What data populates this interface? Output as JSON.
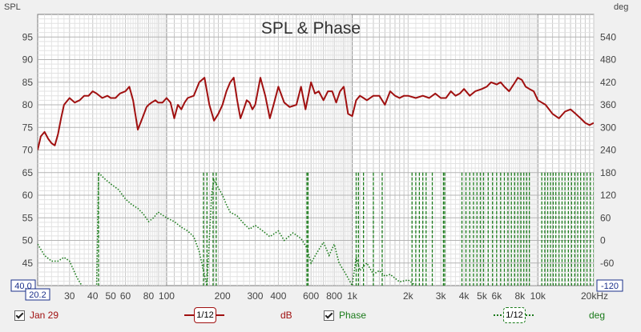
{
  "chart_data": {
    "type": "line",
    "title": "SPL & Phase",
    "left_axis_label": "SPL",
    "right_axis_label": "deg",
    "x_scale": "log",
    "xlim": [
      20.2,
      20000
    ],
    "ylim": [
      40,
      100
    ],
    "y2lim": [
      -120,
      600
    ],
    "x_ticks": [
      {
        "value": 30,
        "label": "30"
      },
      {
        "value": 40,
        "label": "40"
      },
      {
        "value": 50,
        "label": "50"
      },
      {
        "value": 60,
        "label": "60"
      },
      {
        "value": 80,
        "label": "80"
      },
      {
        "value": 100,
        "label": "100"
      },
      {
        "value": 200,
        "label": "200"
      },
      {
        "value": 300,
        "label": "300"
      },
      {
        "value": 400,
        "label": "400"
      },
      {
        "value": 600,
        "label": "600"
      },
      {
        "value": 800,
        "label": "800"
      },
      {
        "value": 1000,
        "label": "1k"
      },
      {
        "value": 2000,
        "label": "2k"
      },
      {
        "value": 3000,
        "label": "3k"
      },
      {
        "value": 4000,
        "label": "4k"
      },
      {
        "value": 5000,
        "label": "5k"
      },
      {
        "value": 6000,
        "label": "6k"
      },
      {
        "value": 8000,
        "label": "8k"
      },
      {
        "value": 10000,
        "label": "10k"
      },
      {
        "value": 20000,
        "label": "20kHz"
      }
    ],
    "x_start_label": "20.2",
    "y_ticks": [
      45,
      50,
      55,
      60,
      65,
      70,
      75,
      80,
      85,
      90,
      95
    ],
    "y_bottom_label": "40.0",
    "y2_ticks": [
      -60,
      0,
      60,
      120,
      180,
      240,
      300,
      360,
      420,
      480,
      540
    ],
    "y2_bottom_label": "-120",
    "grid": true,
    "series": [
      {
        "name": "Jan 29",
        "axis": "left",
        "color": "#a01010",
        "unit": "dB",
        "smoothing": "1/12",
        "x": [
          20.2,
          21,
          22,
          23,
          24,
          25,
          26,
          27,
          28,
          30,
          32,
          34,
          36,
          38,
          40,
          42,
          45,
          48,
          50,
          53,
          56,
          60,
          63,
          66,
          70,
          74,
          78,
          80,
          83,
          87,
          90,
          95,
          100,
          105,
          110,
          115,
          120,
          125,
          130,
          140,
          150,
          160,
          170,
          180,
          190,
          200,
          210,
          220,
          230,
          240,
          250,
          260,
          270,
          280,
          290,
          300,
          320,
          340,
          360,
          380,
          400,
          430,
          460,
          500,
          530,
          560,
          600,
          630,
          660,
          700,
          740,
          780,
          820,
          860,
          900,
          950,
          1000,
          1050,
          1100,
          1150,
          1200,
          1300,
          1400,
          1500,
          1600,
          1700,
          1800,
          1900,
          2000,
          2200,
          2400,
          2600,
          2800,
          3000,
          3200,
          3400,
          3600,
          3800,
          4000,
          4300,
          4600,
          5000,
          5300,
          5600,
          6000,
          6300,
          6600,
          7000,
          7400,
          7800,
          8200,
          8600,
          9000,
          9500,
          10000,
          11000,
          12000,
          13000,
          14000,
          15000,
          16000,
          17000,
          18000,
          19000,
          20000
        ],
        "y": [
          70,
          73,
          74,
          72.5,
          71.5,
          71,
          73.5,
          77,
          80,
          81.5,
          80.5,
          81,
          82,
          82,
          83,
          82.5,
          81.5,
          82,
          81.5,
          81.5,
          82.5,
          83,
          84,
          81,
          74.5,
          77,
          79.5,
          80,
          80.5,
          81,
          80.5,
          80.5,
          81.5,
          80.5,
          77,
          80,
          79,
          80.5,
          81.5,
          82,
          85,
          86,
          80,
          76.5,
          78,
          80,
          83,
          85,
          86,
          81,
          77,
          79,
          81,
          80.5,
          79,
          80,
          86,
          82,
          77,
          80.5,
          84,
          80.5,
          79.5,
          80,
          84,
          79,
          85,
          82.5,
          83,
          81,
          83,
          83,
          80.5,
          83,
          84,
          78,
          77.5,
          81,
          82,
          81.5,
          81,
          82,
          82,
          80,
          83,
          82,
          81.5,
          82,
          82,
          81.5,
          82,
          81.5,
          82.5,
          81.5,
          81.5,
          83,
          82,
          82.5,
          83.5,
          82,
          83,
          83.5,
          84,
          85,
          84.5,
          85,
          84,
          83,
          84.5,
          86,
          85.5,
          84,
          83.5,
          83,
          81,
          80,
          78,
          77,
          78.5,
          79,
          78,
          77,
          76,
          75.5,
          76
        ]
      },
      {
        "name": "Phase",
        "axis": "right",
        "color": "#1a7a1a",
        "unit": "deg",
        "smoothing": "1/12",
        "dotted": true,
        "x": [
          20.2,
          22,
          24,
          26,
          28,
          30,
          33,
          36,
          39,
          42,
          43,
          46,
          50,
          55,
          60,
          65,
          70,
          75,
          80,
          85,
          90,
          100,
          110,
          120,
          130,
          140,
          150,
          158,
          165,
          175,
          180,
          190,
          200,
          210,
          220,
          240,
          260,
          280,
          300,
          330,
          360,
          400,
          430,
          480,
          530,
          570,
          600,
          650,
          700,
          750,
          800,
          850,
          900,
          950,
          1000,
          1050,
          1100,
          1200,
          1300,
          1400,
          1500,
          1600,
          1800,
          2000,
          2200,
          2400
        ],
        "y": [
          -10,
          -40,
          -55,
          -55,
          -45,
          -55,
          -100,
          -130,
          -150,
          -120,
          180,
          165,
          150,
          135,
          110,
          95,
          85,
          70,
          50,
          60,
          75,
          60,
          50,
          35,
          25,
          10,
          -30,
          -80,
          -120,
          125,
          160,
          140,
          120,
          95,
          75,
          65,
          45,
          30,
          40,
          25,
          10,
          25,
          0,
          20,
          5,
          -20,
          -60,
          -30,
          -5,
          -40,
          -10,
          -60,
          -80,
          -100,
          -120,
          -45,
          -80,
          -60,
          -90,
          -80,
          -95,
          -90,
          -110,
          -105,
          -120,
          -125
        ]
      }
    ],
    "phase_wrap_x": [
      43,
      158,
      165,
      178,
      185,
      570,
      578,
      1050,
      1080,
      1150,
      1300,
      1450,
      2100,
      2200,
      2300,
      2400,
      2500,
      2700,
      3100,
      3150,
      3900,
      4100,
      4300,
      4500,
      4700,
      4900,
      5100,
      5400,
      5700,
      6000,
      6300,
      6600,
      6900,
      7200,
      7500,
      7800,
      8100,
      8400,
      8700,
      9000,
      10500,
      10900,
      11300,
      11700,
      12100,
      12500,
      13000,
      13500,
      14000,
      14600,
      15200,
      15800,
      16400,
      17000,
      17700,
      18400,
      19200,
      20000
    ]
  },
  "legend": {
    "spl_name": "Jan 29",
    "spl_smoothing": "1/12",
    "spl_unit": "dB",
    "phase_name": "Phase",
    "phase_smoothing": "1/12",
    "phase_unit": "deg"
  }
}
